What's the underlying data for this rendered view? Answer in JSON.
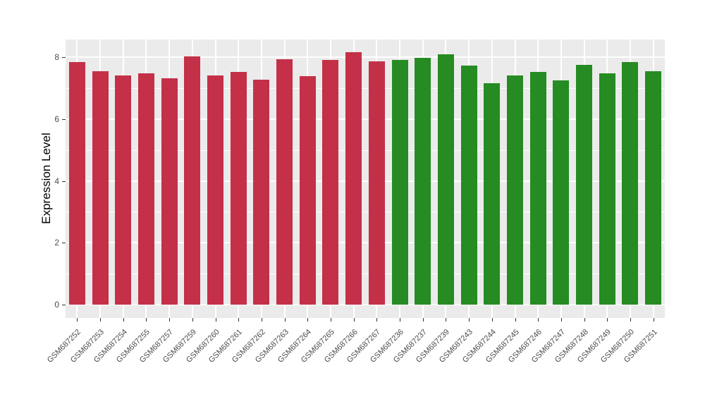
{
  "figure": {
    "background": "#FFFFFF",
    "panel_background": "#EBEBEB",
    "grid_color": "#FFFFFF",
    "tick_color": "#333333",
    "axis_text_color": "#4D4D4D"
  },
  "chart_data": {
    "type": "bar",
    "title": "",
    "xlabel": "",
    "ylabel": "Expression Level",
    "ylim": [
      0,
      8.6
    ],
    "yticks": [
      0,
      2,
      4,
      6,
      8
    ],
    "yticks_minor": [
      1,
      3,
      5,
      7
    ],
    "grid": "on",
    "legend": "none",
    "x_tick_angle": 45,
    "categories": [
      "GSM687252",
      "GSM687253",
      "GSM687254",
      "GSM687255",
      "GSM687257",
      "GSM687259",
      "GSM687260",
      "GSM687261",
      "GSM687262",
      "GSM687263",
      "GSM687264",
      "GSM687265",
      "GSM687266",
      "GSM687267",
      "GSM687236",
      "GSM687237",
      "GSM687239",
      "GSM687243",
      "GSM687244",
      "GSM687245",
      "GSM687246",
      "GSM687247",
      "GSM687248",
      "GSM687249",
      "GSM687250",
      "GSM687251"
    ],
    "values": [
      7.83,
      7.55,
      7.41,
      7.47,
      7.32,
      8.02,
      7.41,
      7.51,
      7.28,
      7.94,
      7.38,
      7.9,
      8.15,
      7.87,
      7.91,
      7.97,
      8.08,
      7.73,
      7.15,
      7.4,
      7.51,
      7.25,
      7.75,
      7.47,
      7.83,
      7.55
    ],
    "bar_groups": [
      "crimson",
      "crimson",
      "crimson",
      "crimson",
      "crimson",
      "crimson",
      "crimson",
      "crimson",
      "crimson",
      "crimson",
      "crimson",
      "crimson",
      "crimson",
      "crimson",
      "green",
      "green",
      "green",
      "green",
      "green",
      "green",
      "green",
      "green",
      "green",
      "green",
      "green",
      "green"
    ],
    "group_colors": {
      "crimson": "#C43048",
      "green": "#268B22"
    }
  }
}
